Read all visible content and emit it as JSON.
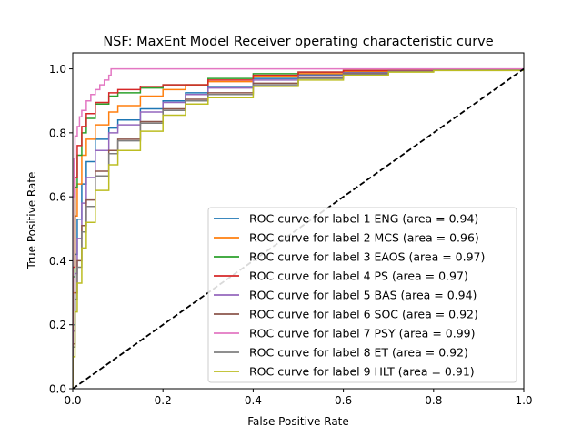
{
  "chart_data": {
    "type": "line",
    "title": "NSF: MaxEnt Model Receiver operating characteristic curve",
    "xlabel": "False Positive Rate",
    "ylabel": "True Positive Rate",
    "xlim": [
      0.0,
      1.0
    ],
    "ylim": [
      0.0,
      1.05
    ],
    "xticks": [
      "0.0",
      "0.2",
      "0.4",
      "0.6",
      "0.8",
      "1.0"
    ],
    "yticks": [
      "0.0",
      "0.2",
      "0.4",
      "0.6",
      "0.8",
      "1.0"
    ],
    "grid": false,
    "legend_position": "lower-right",
    "reference_line": {
      "x": [
        0.0,
        1.0
      ],
      "y": [
        0.0,
        1.0
      ],
      "style": "dashed",
      "color": "#000000"
    },
    "series": [
      {
        "name": "ROC curve for label 1 ENG (area = 0.94)",
        "color": "#1f77b4",
        "x": [
          0,
          0,
          0.005,
          0.01,
          0.02,
          0.03,
          0.05,
          0.08,
          0.1,
          0.15,
          0.2,
          0.25,
          0.3,
          0.4,
          0.5,
          0.6,
          0.7,
          0.8,
          1.0
        ],
        "y": [
          0,
          0.2,
          0.42,
          0.53,
          0.64,
          0.71,
          0.78,
          0.815,
          0.84,
          0.875,
          0.9,
          0.925,
          0.945,
          0.97,
          0.982,
          0.99,
          0.995,
          0.998,
          1.0
        ]
      },
      {
        "name": "ROC curve for label 2 MCS (area = 0.96)",
        "color": "#ff7f0e",
        "x": [
          0,
          0,
          0.005,
          0.01,
          0.02,
          0.03,
          0.05,
          0.08,
          0.1,
          0.15,
          0.2,
          0.25,
          0.3,
          0.4,
          0.5,
          0.6,
          0.8,
          1.0
        ],
        "y": [
          0,
          0.3,
          0.54,
          0.64,
          0.73,
          0.78,
          0.825,
          0.865,
          0.885,
          0.915,
          0.935,
          0.95,
          0.96,
          0.975,
          0.985,
          0.992,
          0.998,
          1.0
        ]
      },
      {
        "name": "ROC curve for label 3 EAOS (area = 0.97)",
        "color": "#2ca02c",
        "x": [
          0,
          0,
          0.005,
          0.01,
          0.02,
          0.03,
          0.05,
          0.08,
          0.1,
          0.15,
          0.2,
          0.3,
          0.4,
          0.5,
          0.6,
          0.8,
          1.0
        ],
        "y": [
          0,
          0.35,
          0.63,
          0.73,
          0.8,
          0.845,
          0.89,
          0.915,
          0.925,
          0.94,
          0.95,
          0.97,
          0.985,
          0.99,
          0.995,
          0.999,
          1.0
        ]
      },
      {
        "name": "ROC curve for label 4 PS (area = 0.97)",
        "color": "#d62728",
        "x": [
          0,
          0,
          0.005,
          0.01,
          0.02,
          0.03,
          0.05,
          0.08,
          0.1,
          0.15,
          0.2,
          0.3,
          0.4,
          0.5,
          0.6,
          0.8,
          1.0
        ],
        "y": [
          0,
          0.38,
          0.66,
          0.76,
          0.82,
          0.86,
          0.895,
          0.925,
          0.935,
          0.945,
          0.95,
          0.965,
          0.98,
          0.99,
          0.995,
          0.999,
          1.0
        ]
      },
      {
        "name": "ROC curve for label 5 BAS (area = 0.94)",
        "color": "#9467bd",
        "x": [
          0,
          0,
          0.005,
          0.01,
          0.02,
          0.03,
          0.05,
          0.08,
          0.1,
          0.15,
          0.2,
          0.25,
          0.3,
          0.4,
          0.5,
          0.6,
          0.7,
          0.8,
          1.0
        ],
        "y": [
          0,
          0.18,
          0.36,
          0.47,
          0.58,
          0.66,
          0.745,
          0.8,
          0.825,
          0.865,
          0.895,
          0.92,
          0.94,
          0.965,
          0.978,
          0.987,
          0.993,
          0.997,
          1.0
        ]
      },
      {
        "name": "ROC curve for label 6 SOC (area = 0.92)",
        "color": "#8c564b",
        "x": [
          0,
          0,
          0.005,
          0.01,
          0.02,
          0.03,
          0.05,
          0.08,
          0.1,
          0.15,
          0.2,
          0.25,
          0.3,
          0.4,
          0.5,
          0.6,
          0.7,
          0.8,
          1.0
        ],
        "y": [
          0,
          0.14,
          0.3,
          0.4,
          0.51,
          0.59,
          0.68,
          0.745,
          0.78,
          0.835,
          0.875,
          0.905,
          0.925,
          0.955,
          0.972,
          0.985,
          0.992,
          0.996,
          1.0
        ]
      },
      {
        "name": "ROC curve for label 7 PSY (area = 0.99)",
        "color": "#e377c2",
        "x": [
          0,
          0,
          0.003,
          0.005,
          0.01,
          0.015,
          0.02,
          0.03,
          0.04,
          0.05,
          0.06,
          0.07,
          0.08,
          0.085,
          1.0
        ],
        "y": [
          0,
          0.6,
          0.72,
          0.79,
          0.82,
          0.85,
          0.87,
          0.9,
          0.92,
          0.935,
          0.95,
          0.965,
          0.98,
          1.0,
          1.0
        ]
      },
      {
        "name": "ROC curve for label 8 ET (area = 0.92)",
        "color": "#7f7f7f",
        "x": [
          0,
          0,
          0.005,
          0.01,
          0.02,
          0.03,
          0.05,
          0.08,
          0.1,
          0.15,
          0.2,
          0.25,
          0.3,
          0.4,
          0.5,
          0.6,
          0.7,
          0.8,
          1.0
        ],
        "y": [
          0,
          0.13,
          0.28,
          0.38,
          0.49,
          0.57,
          0.665,
          0.735,
          0.775,
          0.83,
          0.87,
          0.9,
          0.92,
          0.95,
          0.97,
          0.984,
          0.991,
          0.996,
          1.0
        ]
      },
      {
        "name": "ROC curve for label 9 HLT (area = 0.91)",
        "color": "#bcbd22",
        "x": [
          0,
          0,
          0.005,
          0.01,
          0.02,
          0.03,
          0.05,
          0.08,
          0.1,
          0.15,
          0.2,
          0.25,
          0.3,
          0.4,
          0.5,
          0.6,
          0.7,
          0.8,
          1.0
        ],
        "y": [
          0,
          0.1,
          0.24,
          0.33,
          0.44,
          0.52,
          0.62,
          0.7,
          0.745,
          0.805,
          0.855,
          0.89,
          0.91,
          0.945,
          0.965,
          0.98,
          0.99,
          0.995,
          1.0
        ]
      }
    ]
  }
}
